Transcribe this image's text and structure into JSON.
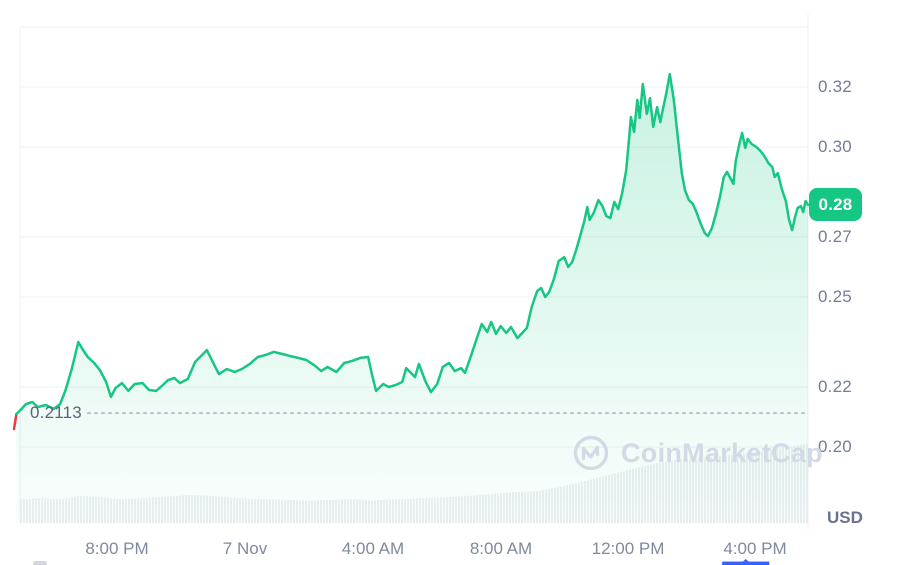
{
  "chart": {
    "watermark_text": "CoinMarketCap",
    "currency_label": "USD",
    "current_price_badge": "0.28",
    "open_price_label": "0.2113",
    "y_ticks": [
      "0.32",
      "0.30",
      "0.27",
      "0.25",
      "0.22",
      "0.20"
    ],
    "x_ticks": [
      "8:00 PM",
      "7 Nov",
      "4:00 AM",
      "8:00 AM",
      "12:00 PM",
      "4:00 PM"
    ],
    "colors": {
      "line_up": "#16c784",
      "line_down": "#ea3943",
      "badge_bg": "#16c784",
      "grid": "#eef0f3",
      "dotted_line": "#b6bdcc",
      "volume_bar": "#eceff2",
      "scrollbar_blue": "#3861fb"
    }
  },
  "chart_data": {
    "type": "area",
    "title": "",
    "ylabel": "USD",
    "legend": "none",
    "grid": "horizontal",
    "axis_side": "right",
    "open_price": 0.2113,
    "current_price": 0.28,
    "y_tick_values": [
      0.32,
      0.3,
      0.27,
      0.25,
      0.22,
      0.2
    ],
    "y_grid_values": [
      0.34,
      0.32,
      0.3,
      0.27,
      0.25,
      0.22,
      0.2
    ],
    "x_tick_labels": [
      "8:00 PM",
      "7 Nov",
      "4:00 AM",
      "8:00 AM",
      "12:00 PM",
      "4:00 PM"
    ],
    "pre_open_segment": [
      [
        0.0,
        0.206
      ],
      [
        0.3,
        0.211
      ]
    ],
    "series": [
      [
        0.3,
        0.211
      ],
      [
        0.8,
        0.2123
      ],
      [
        1.5,
        0.2143
      ],
      [
        2.3,
        0.215
      ],
      [
        3.0,
        0.2133
      ],
      [
        4.0,
        0.214
      ],
      [
        5.0,
        0.2127
      ],
      [
        5.8,
        0.2143
      ],
      [
        6.5,
        0.219
      ],
      [
        7.3,
        0.2263
      ],
      [
        8.1,
        0.235
      ],
      [
        8.7,
        0.2323
      ],
      [
        9.3,
        0.23
      ],
      [
        10.1,
        0.228
      ],
      [
        10.8,
        0.2257
      ],
      [
        11.6,
        0.2217
      ],
      [
        12.2,
        0.2167
      ],
      [
        12.8,
        0.2197
      ],
      [
        13.6,
        0.2213
      ],
      [
        14.4,
        0.2187
      ],
      [
        15.2,
        0.221
      ],
      [
        16.2,
        0.2213
      ],
      [
        17.0,
        0.219
      ],
      [
        17.9,
        0.2187
      ],
      [
        18.6,
        0.2203
      ],
      [
        19.4,
        0.2223
      ],
      [
        20.2,
        0.223
      ],
      [
        20.9,
        0.2213
      ],
      [
        21.9,
        0.2227
      ],
      [
        22.8,
        0.2283
      ],
      [
        23.7,
        0.2307
      ],
      [
        24.3,
        0.2323
      ],
      [
        25.1,
        0.228
      ],
      [
        25.8,
        0.2243
      ],
      [
        26.8,
        0.226
      ],
      [
        27.8,
        0.225
      ],
      [
        28.7,
        0.226
      ],
      [
        29.7,
        0.2277
      ],
      [
        30.7,
        0.23
      ],
      [
        31.7,
        0.2307
      ],
      [
        32.7,
        0.2317
      ],
      [
        33.8,
        0.231
      ],
      [
        34.8,
        0.2303
      ],
      [
        35.8,
        0.2297
      ],
      [
        36.8,
        0.229
      ],
      [
        37.8,
        0.2273
      ],
      [
        38.7,
        0.2253
      ],
      [
        39.5,
        0.2267
      ],
      [
        40.6,
        0.225
      ],
      [
        41.6,
        0.228
      ],
      [
        42.6,
        0.2287
      ],
      [
        43.6,
        0.2297
      ],
      [
        44.6,
        0.23
      ],
      [
        45.1,
        0.224
      ],
      [
        45.6,
        0.2187
      ],
      [
        46.5,
        0.221
      ],
      [
        47.2,
        0.22
      ],
      [
        48.1,
        0.2207
      ],
      [
        48.9,
        0.2217
      ],
      [
        49.4,
        0.2263
      ],
      [
        50.0,
        0.2247
      ],
      [
        50.5,
        0.2233
      ],
      [
        51.0,
        0.2277
      ],
      [
        51.8,
        0.222
      ],
      [
        52.5,
        0.2183
      ],
      [
        53.3,
        0.221
      ],
      [
        54.0,
        0.2267
      ],
      [
        54.8,
        0.228
      ],
      [
        55.5,
        0.2253
      ],
      [
        56.3,
        0.2263
      ],
      [
        56.8,
        0.2247
      ],
      [
        57.6,
        0.2307
      ],
      [
        58.3,
        0.2363
      ],
      [
        58.9,
        0.241
      ],
      [
        59.6,
        0.2383
      ],
      [
        60.1,
        0.2417
      ],
      [
        60.7,
        0.2377
      ],
      [
        61.3,
        0.2403
      ],
      [
        62.0,
        0.238
      ],
      [
        62.6,
        0.24
      ],
      [
        63.4,
        0.2363
      ],
      [
        64.0,
        0.238
      ],
      [
        64.6,
        0.2397
      ],
      [
        65.2,
        0.2467
      ],
      [
        65.9,
        0.252
      ],
      [
        66.4,
        0.253
      ],
      [
        66.9,
        0.25
      ],
      [
        67.4,
        0.2517
      ],
      [
        68.0,
        0.256
      ],
      [
        68.6,
        0.262
      ],
      [
        69.3,
        0.2633
      ],
      [
        69.8,
        0.26
      ],
      [
        70.3,
        0.2617
      ],
      [
        70.8,
        0.2657
      ],
      [
        71.3,
        0.2703
      ],
      [
        71.8,
        0.275
      ],
      [
        72.2,
        0.28
      ],
      [
        72.5,
        0.2757
      ],
      [
        73.0,
        0.278
      ],
      [
        73.6,
        0.2823
      ],
      [
        74.1,
        0.2803
      ],
      [
        74.6,
        0.277
      ],
      [
        75.1,
        0.2763
      ],
      [
        75.6,
        0.2817
      ],
      [
        76.1,
        0.2793
      ],
      [
        76.6,
        0.2847
      ],
      [
        77.1,
        0.2923
      ],
      [
        77.5,
        0.304
      ],
      [
        77.7,
        0.31
      ],
      [
        78.1,
        0.305
      ],
      [
        78.5,
        0.3157
      ],
      [
        78.8,
        0.3097
      ],
      [
        79.2,
        0.321
      ],
      [
        79.7,
        0.311
      ],
      [
        80.1,
        0.3163
      ],
      [
        80.5,
        0.3067
      ],
      [
        81.0,
        0.3133
      ],
      [
        81.4,
        0.3083
      ],
      [
        81.7,
        0.3123
      ],
      [
        82.1,
        0.3173
      ],
      [
        82.6,
        0.3243
      ],
      [
        83.1,
        0.3157
      ],
      [
        83.6,
        0.3033
      ],
      [
        84.1,
        0.2913
      ],
      [
        84.5,
        0.2857
      ],
      [
        85.0,
        0.2823
      ],
      [
        85.5,
        0.281
      ],
      [
        86.0,
        0.278
      ],
      [
        86.5,
        0.2743
      ],
      [
        87.0,
        0.2713
      ],
      [
        87.4,
        0.2703
      ],
      [
        87.9,
        0.273
      ],
      [
        88.4,
        0.2777
      ],
      [
        88.9,
        0.2833
      ],
      [
        89.4,
        0.29
      ],
      [
        89.8,
        0.2917
      ],
      [
        90.2,
        0.2897
      ],
      [
        90.6,
        0.2877
      ],
      [
        90.9,
        0.2953
      ],
      [
        91.3,
        0.3003
      ],
      [
        91.7,
        0.3047
      ],
      [
        92.1,
        0.2997
      ],
      [
        92.4,
        0.3027
      ],
      [
        92.9,
        0.301
      ],
      [
        93.5,
        0.3
      ],
      [
        94.0,
        0.2987
      ],
      [
        94.5,
        0.297
      ],
      [
        95.0,
        0.2947
      ],
      [
        95.5,
        0.2933
      ],
      [
        95.8,
        0.29
      ],
      [
        96.2,
        0.2913
      ],
      [
        96.7,
        0.286
      ],
      [
        97.2,
        0.282
      ],
      [
        97.6,
        0.276
      ],
      [
        98.0,
        0.2723
      ],
      [
        98.4,
        0.277
      ],
      [
        98.7,
        0.2797
      ],
      [
        99.1,
        0.2803
      ],
      [
        99.4,
        0.2783
      ],
      [
        99.7,
        0.282
      ],
      [
        100.0,
        0.2807
      ]
    ],
    "volume_profile": [
      [
        0,
        0.29
      ],
      [
        3,
        0.31
      ],
      [
        6,
        0.3
      ],
      [
        8,
        0.34
      ],
      [
        10,
        0.33
      ],
      [
        13,
        0.3
      ],
      [
        16,
        0.31
      ],
      [
        19,
        0.33
      ],
      [
        22,
        0.35
      ],
      [
        25,
        0.34
      ],
      [
        28,
        0.31
      ],
      [
        31,
        0.3
      ],
      [
        34,
        0.29
      ],
      [
        37,
        0.28
      ],
      [
        40,
        0.29
      ],
      [
        43,
        0.3
      ],
      [
        45,
        0.28
      ],
      [
        48,
        0.3
      ],
      [
        51,
        0.31
      ],
      [
        54,
        0.32
      ],
      [
        57,
        0.34
      ],
      [
        60,
        0.36
      ],
      [
        62,
        0.38
      ],
      [
        64,
        0.39
      ],
      [
        66,
        0.4
      ],
      [
        68,
        0.44
      ],
      [
        70,
        0.48
      ],
      [
        72,
        0.53
      ],
      [
        74,
        0.58
      ],
      [
        76,
        0.63
      ],
      [
        78,
        0.68
      ],
      [
        80,
        0.73
      ],
      [
        82,
        0.77
      ],
      [
        84,
        0.8
      ],
      [
        86,
        0.81
      ],
      [
        88,
        0.83
      ],
      [
        90,
        0.85
      ],
      [
        92,
        0.87
      ],
      [
        94,
        0.9
      ],
      [
        96,
        0.93
      ],
      [
        98,
        0.96
      ],
      [
        100,
        1.0
      ]
    ]
  }
}
